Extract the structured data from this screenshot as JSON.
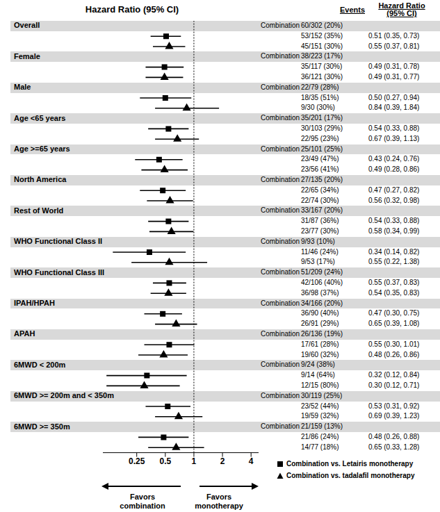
{
  "chart_data": {
    "type": "forest",
    "title": "Hazard Ratio (95% CI)",
    "events_header": "Events",
    "hr_header": [
      "Hazard Ratio",
      "(95% CI)"
    ],
    "combination_label": "Combination",
    "log": "x",
    "grid": false,
    "xlim": [
      0.11,
      4.8
    ],
    "xticks": [
      0.25,
      0.5,
      1,
      2,
      4
    ],
    "reference_line": 1,
    "annotations": [
      [
        "Favors",
        "combination"
      ],
      [
        "Favors",
        "monotherapy"
      ]
    ],
    "series": [
      {
        "name": "Combination vs. Letairis monotherapy",
        "marker": "square",
        "color": "#000000"
      },
      {
        "name": "Combination vs. tadalafil monotherapy",
        "marker": "triangle",
        "color": "#000000"
      }
    ],
    "groups": [
      {
        "name": "Overall",
        "combination_events": "60/302 (20%)",
        "rows": [
          {
            "events": "53/152 (35%)",
            "hr": 0.51,
            "lo": 0.35,
            "hi": 0.73,
            "label": "0.51 (0.35, 0.73)"
          },
          {
            "events": "45/151 (30%)",
            "hr": 0.55,
            "lo": 0.37,
            "hi": 0.81,
            "label": "0.55 (0.37, 0.81)"
          }
        ]
      },
      {
        "name": "Female",
        "combination_events": "38/223 (17%)",
        "rows": [
          {
            "events": "35/117 (30%)",
            "hr": 0.49,
            "lo": 0.31,
            "hi": 0.78,
            "label": "0.49 (0.31, 0.78)"
          },
          {
            "events": "36/121 (30%)",
            "hr": 0.49,
            "lo": 0.31,
            "hi": 0.77,
            "label": "0.49 (0.31, 0.77)"
          }
        ]
      },
      {
        "name": "Male",
        "combination_events": "22/79 (28%)",
        "rows": [
          {
            "events": "18/35 (51%)",
            "hr": 0.5,
            "lo": 0.27,
            "hi": 0.94,
            "label": "0.50 (0.27, 0.94)"
          },
          {
            "events": "9/30 (30%)",
            "hr": 0.84,
            "lo": 0.39,
            "hi": 1.84,
            "label": "0.84 (0.39, 1.84)"
          }
        ]
      },
      {
        "name": "Age <65 years",
        "combination_events": "35/201 (17%)",
        "rows": [
          {
            "events": "30/103 (29%)",
            "hr": 0.54,
            "lo": 0.33,
            "hi": 0.88,
            "label": "0.54 (0.33, 0.88)"
          },
          {
            "events": "22/95 (23%)",
            "hr": 0.67,
            "lo": 0.39,
            "hi": 1.13,
            "label": "0.67 (0.39, 1.13)"
          }
        ]
      },
      {
        "name": "Age >=65 years",
        "combination_events": "25/101 (25%)",
        "rows": [
          {
            "events": "23/49 (47%)",
            "hr": 0.43,
            "lo": 0.24,
            "hi": 0.76,
            "label": "0.43 (0.24, 0.76)"
          },
          {
            "events": "23/56 (41%)",
            "hr": 0.49,
            "lo": 0.28,
            "hi": 0.86,
            "label": "0.49 (0.28, 0.86)"
          }
        ]
      },
      {
        "name": "North America",
        "combination_events": "27/135 (20%)",
        "rows": [
          {
            "events": "22/65 (34%)",
            "hr": 0.47,
            "lo": 0.27,
            "hi": 0.82,
            "label": "0.47 (0.27, 0.82)"
          },
          {
            "events": "22/74 (30%)",
            "hr": 0.56,
            "lo": 0.32,
            "hi": 0.98,
            "label": "0.56 (0.32, 0.98)"
          }
        ]
      },
      {
        "name": "Rest of World",
        "combination_events": "33/167 (20%)",
        "rows": [
          {
            "events": "31/87 (36%)",
            "hr": 0.54,
            "lo": 0.33,
            "hi": 0.88,
            "label": "0.54 (0.33, 0.88)"
          },
          {
            "events": "23/77 (30%)",
            "hr": 0.58,
            "lo": 0.34,
            "hi": 0.99,
            "label": "0.58 (0.34, 0.99)"
          }
        ]
      },
      {
        "name": "WHO Functional Class II",
        "combination_events": "9/93 (10%)",
        "rows": [
          {
            "events": "11/46 (24%)",
            "hr": 0.34,
            "lo": 0.14,
            "hi": 0.82,
            "label": "0.34 (0.14, 0.82)"
          },
          {
            "events": "9/53 (17%)",
            "hr": 0.55,
            "lo": 0.22,
            "hi": 1.38,
            "label": "0.55 (0.22, 1.38)"
          }
        ]
      },
      {
        "name": "WHO Functional Class III",
        "combination_events": "51/209 (24%)",
        "rows": [
          {
            "events": "42/106 (40%)",
            "hr": 0.55,
            "lo": 0.37,
            "hi": 0.83,
            "label": "0.55 (0.37, 0.83)"
          },
          {
            "events": "36/98 (37%)",
            "hr": 0.54,
            "lo": 0.35,
            "hi": 0.83,
            "label": "0.54 (0.35, 0.83)"
          }
        ]
      },
      {
        "name": "IPAH/HPAH",
        "combination_events": "34/166 (20%)",
        "rows": [
          {
            "events": "36/90 (40%)",
            "hr": 0.47,
            "lo": 0.3,
            "hi": 0.75,
            "label": "0.47 (0.30, 0.75)"
          },
          {
            "events": "26/91 (29%)",
            "hr": 0.65,
            "lo": 0.39,
            "hi": 1.08,
            "label": "0.65 (0.39, 1.08)"
          }
        ]
      },
      {
        "name": "APAH",
        "combination_events": "26/136 (19%)",
        "rows": [
          {
            "events": "17/61 (28%)",
            "hr": 0.55,
            "lo": 0.3,
            "hi": 1.01,
            "label": "0.55 (0.30, 1.01)"
          },
          {
            "events": "19/60 (32%)",
            "hr": 0.48,
            "lo": 0.26,
            "hi": 0.86,
            "label": "0.48 (0.26, 0.86)"
          }
        ]
      },
      {
        "name": "6MWD < 200m",
        "combination_events": "9/24 (38%)",
        "rows": [
          {
            "events": "9/14 (64%)",
            "hr": 0.32,
            "lo": 0.12,
            "hi": 0.84,
            "label": "0.32 (0.12, 0.84)"
          },
          {
            "events": "12/15 (80%)",
            "hr": 0.3,
            "lo": 0.12,
            "hi": 0.71,
            "label": "0.30 (0.12, 0.71)"
          }
        ]
      },
      {
        "name": "6MWD >= 200m and < 350m",
        "combination_events": "30/119 (25%)",
        "rows": [
          {
            "events": "23/52 (44%)",
            "hr": 0.53,
            "lo": 0.31,
            "hi": 0.92,
            "label": "0.53 (0.31, 0.92)"
          },
          {
            "events": "19/59 (32%)",
            "hr": 0.69,
            "lo": 0.39,
            "hi": 1.23,
            "label": "0.69 (0.39, 1.23)"
          }
        ]
      },
      {
        "name": "6MWD >= 350m",
        "combination_events": "21/159 (13%)",
        "rows": [
          {
            "events": "21/86 (24%)",
            "hr": 0.48,
            "lo": 0.26,
            "hi": 0.88,
            "label": "0.48 (0.26, 0.88)"
          },
          {
            "events": "14/77 (18%)",
            "hr": 0.65,
            "lo": 0.33,
            "hi": 1.28,
            "label": "0.65 (0.33, 1.28)"
          }
        ]
      }
    ]
  }
}
